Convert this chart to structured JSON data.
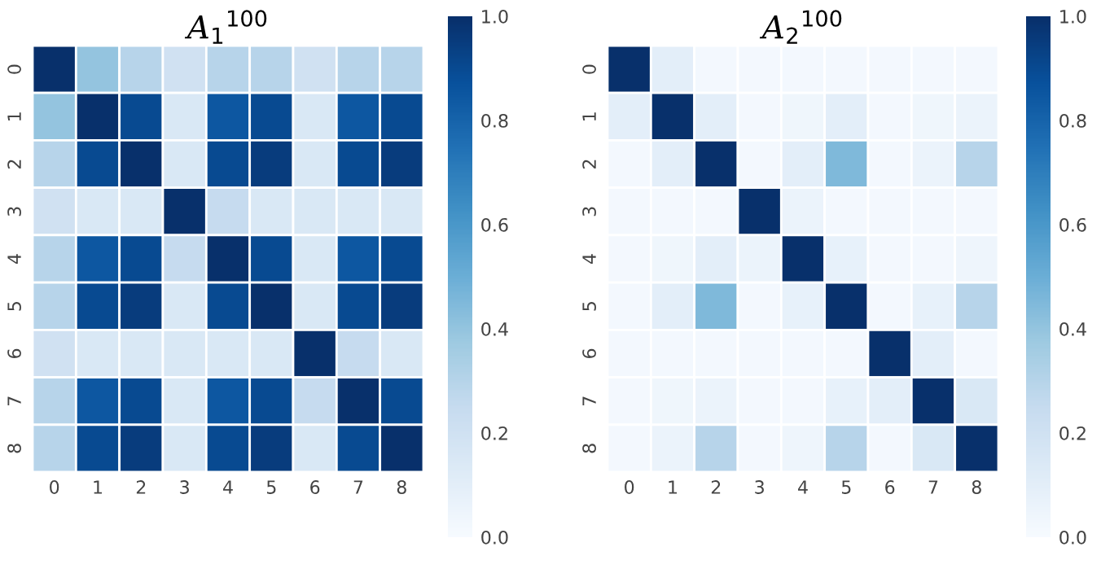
{
  "chart_data": [
    {
      "type": "heatmap",
      "title": "A$_{1}$$^{100}$",
      "categories": [
        "0",
        "1",
        "2",
        "3",
        "4",
        "5",
        "6",
        "7",
        "8"
      ],
      "y_categories": [
        "0",
        "1",
        "2",
        "3",
        "4",
        "5",
        "6",
        "7",
        "8"
      ],
      "clim": [
        0,
        1
      ],
      "cticks": [
        {
          "value": 0,
          "label": "0.0"
        },
        {
          "value": 0.2,
          "label": "0.2"
        },
        {
          "value": 0.4,
          "label": "0.4"
        },
        {
          "value": 0.6,
          "label": "0.6"
        },
        {
          "value": 0.8,
          "label": "0.8"
        },
        {
          "value": 1,
          "label": "1.0"
        }
      ],
      "cells": [
        [
          1,
          0.4,
          0.3,
          0.2,
          0.3,
          0.3,
          0.2,
          0.3,
          0.3
        ],
        [
          0.4,
          1,
          0.9,
          0.15,
          0.85,
          0.9,
          0.15,
          0.85,
          0.9
        ],
        [
          0.3,
          0.9,
          1,
          0.15,
          0.9,
          0.95,
          0.15,
          0.9,
          0.95
        ],
        [
          0.2,
          0.15,
          0.15,
          1,
          0.25,
          0.15,
          0.15,
          0.15,
          0.15
        ],
        [
          0.3,
          0.85,
          0.9,
          0.25,
          1,
          0.9,
          0.15,
          0.85,
          0.9
        ],
        [
          0.3,
          0.9,
          0.95,
          0.15,
          0.9,
          1,
          0.15,
          0.9,
          0.95
        ],
        [
          0.2,
          0.15,
          0.15,
          0.15,
          0.15,
          0.15,
          1,
          0.25,
          0.15
        ],
        [
          0.3,
          0.85,
          0.9,
          0.15,
          0.85,
          0.9,
          0.25,
          1,
          0.9
        ],
        [
          0.3,
          0.9,
          0.95,
          0.15,
          0.9,
          0.95,
          0.15,
          0.9,
          1
        ]
      ]
    },
    {
      "type": "heatmap",
      "title": "A$_{2}$$^{100}$",
      "categories": [
        "0",
        "1",
        "2",
        "3",
        "4",
        "5",
        "6",
        "7",
        "8"
      ],
      "y_categories": [
        "0",
        "1",
        "2",
        "3",
        "4",
        "5",
        "6",
        "7",
        "8"
      ],
      "clim": [
        0,
        1
      ],
      "cticks": [
        {
          "value": 0,
          "label": "0.0"
        },
        {
          "value": 0.2,
          "label": "0.2"
        },
        {
          "value": 0.4,
          "label": "0.4"
        },
        {
          "value": 0.6,
          "label": "0.6"
        },
        {
          "value": 0.8,
          "label": "0.8"
        },
        {
          "value": 1,
          "label": "1.0"
        }
      ],
      "cells": [
        [
          1,
          0.1,
          0.02,
          0.02,
          0.02,
          0.02,
          0.02,
          0.02,
          0.02
        ],
        [
          0.1,
          1,
          0.1,
          0.02,
          0.04,
          0.1,
          0.02,
          0.04,
          0.06
        ],
        [
          0.02,
          0.1,
          1,
          0.02,
          0.1,
          0.45,
          0.02,
          0.06,
          0.3
        ],
        [
          0.02,
          0.02,
          0.02,
          1,
          0.06,
          0.02,
          0.02,
          0.02,
          0.02
        ],
        [
          0.02,
          0.04,
          0.1,
          0.06,
          1,
          0.08,
          0.02,
          0.02,
          0.05
        ],
        [
          0.02,
          0.1,
          0.45,
          0.02,
          0.08,
          1,
          0.02,
          0.08,
          0.3
        ],
        [
          0.02,
          0.02,
          0.02,
          0.02,
          0.02,
          0.02,
          1,
          0.1,
          0.02
        ],
        [
          0.02,
          0.04,
          0.06,
          0.02,
          0.02,
          0.08,
          0.1,
          1,
          0.15
        ],
        [
          0.02,
          0.06,
          0.3,
          0.02,
          0.05,
          0.3,
          0.02,
          0.15,
          1
        ]
      ]
    }
  ]
}
